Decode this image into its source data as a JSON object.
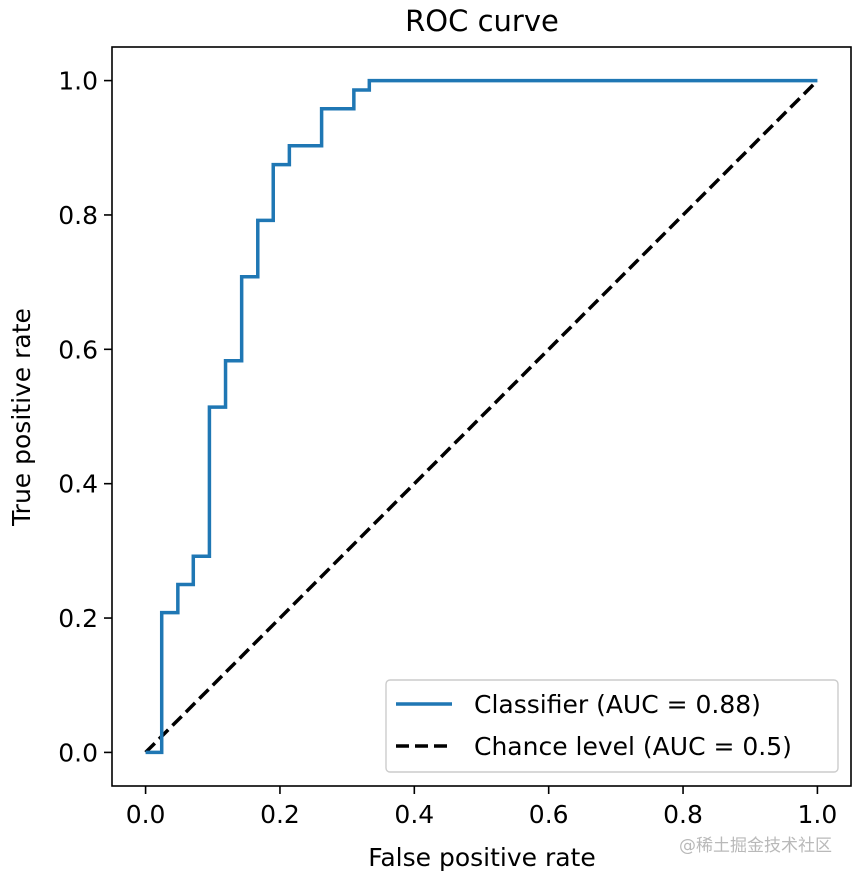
{
  "chart_data": {
    "type": "line",
    "title": "ROC curve",
    "xlabel": "False positive rate",
    "ylabel": "True positive rate",
    "xlim": [
      -0.05,
      1.05
    ],
    "ylim": [
      -0.05,
      1.05
    ],
    "xticks": [
      "0.0",
      "0.2",
      "0.4",
      "0.6",
      "0.8",
      "1.0"
    ],
    "yticks": [
      "0.0",
      "0.2",
      "0.4",
      "0.6",
      "0.8",
      "1.0"
    ],
    "legend_position": "lower-right",
    "grid": false,
    "series": [
      {
        "name": "Classifier (AUC = 0.88)",
        "style": "solid",
        "color": "#1f77b4",
        "x": [
          0.0,
          0.024,
          0.024,
          0.048,
          0.048,
          0.071,
          0.071,
          0.095,
          0.095,
          0.119,
          0.119,
          0.143,
          0.143,
          0.167,
          0.167,
          0.19,
          0.19,
          0.214,
          0.214,
          0.262,
          0.262,
          0.31,
          0.31,
          0.333,
          0.333,
          1.0
        ],
        "y": [
          0.0,
          0.0,
          0.208,
          0.208,
          0.25,
          0.25,
          0.292,
          0.292,
          0.514,
          0.514,
          0.583,
          0.583,
          0.708,
          0.708,
          0.792,
          0.792,
          0.875,
          0.875,
          0.903,
          0.903,
          0.958,
          0.958,
          0.986,
          0.986,
          1.0,
          1.0
        ]
      },
      {
        "name": "Chance level (AUC = 0.5)",
        "style": "dashed",
        "color": "#000000",
        "x": [
          0.0,
          1.0
        ],
        "y": [
          0.0,
          1.0
        ]
      }
    ]
  },
  "watermark": "@稀土掘金技术社区"
}
